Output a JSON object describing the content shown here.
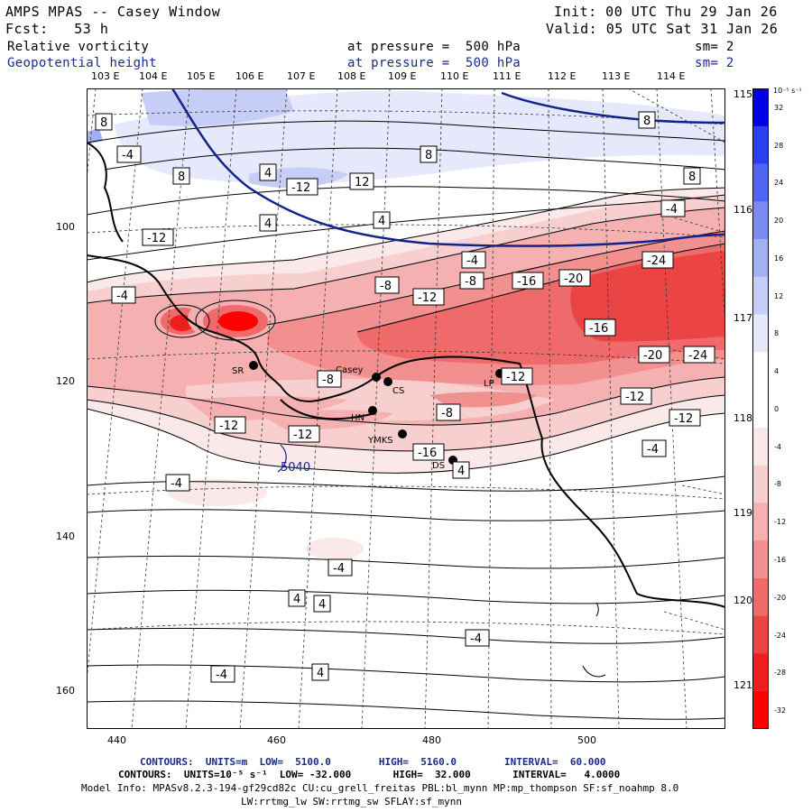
{
  "header": {
    "title": "AMPS MPAS -- Casey Window",
    "init": "Init: 00 UTC Thu 29 Jan 26",
    "forecast": "Fcst:   53 h",
    "valid": "Valid: 05 UTC Sat 31 Jan 26",
    "field1_name": "Relative vorticity",
    "field1_level": "at pressure =  500 hPa",
    "field1_sm": "sm= 2",
    "field2_name": "Geopotential height",
    "field2_level": "at pressure =  500 hPa",
    "field2_sm": "sm= 2"
  },
  "top_lon_labels": [
    "103 E",
    "104 E",
    "105 E",
    "106 E",
    "107 E",
    "108 E",
    "109 E",
    "110 E",
    "111 E",
    "112 E",
    "113 E",
    "114 E"
  ],
  "right_lon_labels": [
    "115 E",
    "116 E",
    "117 E",
    "118 E",
    "119 E",
    "120 E",
    "121 E"
  ],
  "x_axis_labels": [
    "440",
    "460",
    "480",
    "500"
  ],
  "y_axis_labels": [
    "100",
    "120",
    "140",
    "160"
  ],
  "colorbar": {
    "units": "10⁻⁵ s⁻¹",
    "levels": [
      "32",
      "28",
      "24",
      "20",
      "16",
      "12",
      "8",
      "4",
      "0",
      "-4",
      "-8",
      "-12",
      "-16",
      "-20",
      "-24",
      "-28",
      "-32"
    ],
    "colors": [
      "#0000e6",
      "#2b3ef0",
      "#5065f2",
      "#7a8cf2",
      "#a4b0f4",
      "#c6cdf7",
      "#e6e9fb",
      "#ffffff",
      "#ffffff",
      "#fbe9e9",
      "#f8cfcf",
      "#f5b1b1",
      "#f28f8f",
      "#ef6b6b",
      "#eb4444",
      "#f01f1f",
      "#ff0000"
    ]
  },
  "stations": [
    "SR",
    "Casey",
    "CS",
    "LP",
    "HN",
    "YMKS",
    "DS"
  ],
  "vort_labels": [
    "8",
    "-4",
    "8",
    "4",
    "-12",
    "8",
    "4",
    "12",
    "8",
    "-4",
    "8",
    "-12",
    "-4",
    "4",
    "-4",
    "-8",
    "-24",
    "-8",
    "-12",
    "-16",
    "-20",
    "-16",
    "-20",
    "-24",
    "-8",
    "-12",
    "-12",
    "-8",
    "-12",
    "-12",
    "-16",
    "-4",
    "-12",
    "-4",
    "4",
    "4",
    "4",
    "-4",
    "4",
    "-4",
    "-4"
  ],
  "height_label": "5040",
  "footer": {
    "line1": "CONTOURS:  UNITS=m  LOW=  5100.0        HIGH=  5160.0        INTERVAL=  60.000",
    "line2": "CONTOURS:  UNITS=10⁻⁵ s⁻¹  LOW= -32.000       HIGH=  32.000       INTERVAL=   4.0000",
    "line3": "Model Info: MPASv8.2.3-194-gf29cd82c CU:cu_grell_freitas PBL:bl_mynn MP:mp_thompson SF:sf_noahmp 8.0",
    "line4": "LW:rrtmg_lw SW:rrtmg_sw SFLAY:sf_mynn"
  }
}
